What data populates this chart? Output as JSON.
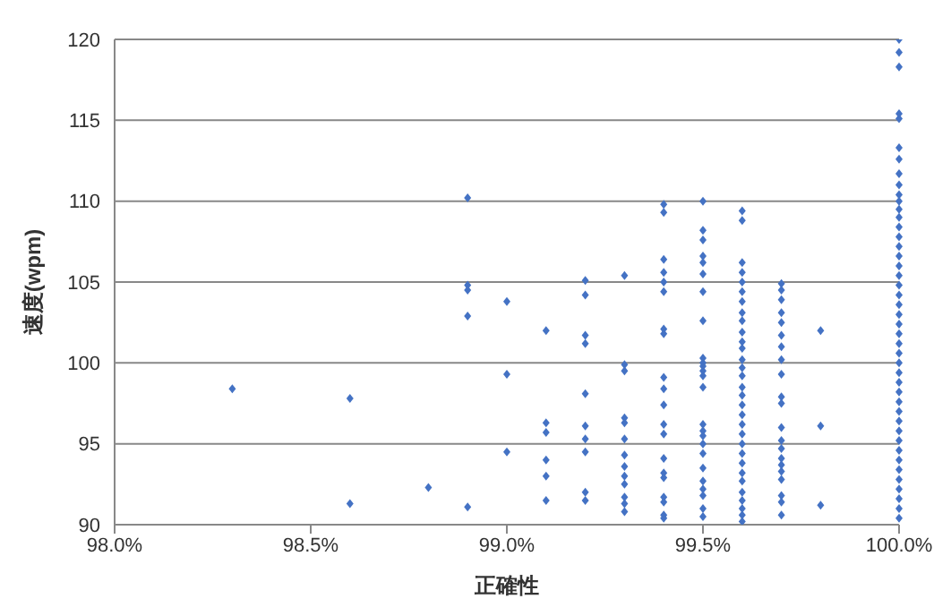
{
  "chart_data": {
    "type": "scatter",
    "xlabel": "正確性",
    "ylabel": "速度(wpm)",
    "xlim": [
      98.0,
      100.0
    ],
    "xticks": [
      {
        "value": 98.0,
        "label": "98.0%"
      },
      {
        "value": 98.5,
        "label": "98.5%"
      },
      {
        "value": 99.0,
        "label": "99.0%"
      },
      {
        "value": 99.5,
        "label": "99.5%"
      },
      {
        "value": 100.0,
        "label": "100.0%"
      }
    ],
    "ylim": [
      90,
      120
    ],
    "yticks": [
      90,
      95,
      100,
      105,
      110,
      115,
      120
    ],
    "grid": "y",
    "marker": "diamond",
    "series": [
      {
        "color": "#4472c4",
        "x": [
          98.3,
          98.6,
          98.6,
          98.8,
          98.9,
          98.9,
          98.9,
          98.9,
          98.9,
          99.0,
          99.0,
          99.0,
          99.1,
          99.1,
          99.1,
          99.1,
          99.1,
          99.1,
          99.2,
          99.2,
          99.2,
          99.2,
          99.2,
          99.2,
          99.2,
          99.2,
          99.2,
          99.2,
          99.3,
          99.3,
          99.3,
          99.3,
          99.3,
          99.3,
          99.3,
          99.3,
          99.3,
          99.3,
          99.3,
          99.3,
          99.3,
          99.4,
          99.4,
          99.4,
          99.4,
          99.4,
          99.4,
          99.4,
          99.4,
          99.4,
          99.4,
          99.4,
          99.4,
          99.4,
          99.4,
          99.4,
          99.4,
          99.4,
          99.4,
          99.4,
          99.4,
          99.5,
          99.5,
          99.5,
          99.5,
          99.5,
          99.5,
          99.5,
          99.5,
          99.5,
          99.5,
          99.5,
          99.5,
          99.5,
          99.5,
          99.5,
          99.5,
          99.5,
          99.5,
          99.5,
          99.5,
          99.5,
          99.5,
          99.5,
          99.5,
          99.5,
          99.6,
          99.6,
          99.6,
          99.6,
          99.6,
          99.6,
          99.6,
          99.6,
          99.6,
          99.6,
          99.6,
          99.6,
          99.6,
          99.6,
          99.6,
          99.6,
          99.6,
          99.6,
          99.6,
          99.6,
          99.6,
          99.6,
          99.6,
          99.6,
          99.6,
          99.6,
          99.6,
          99.6,
          99.6,
          99.6,
          99.6,
          99.7,
          99.7,
          99.7,
          99.7,
          99.7,
          99.7,
          99.7,
          99.7,
          99.7,
          99.7,
          99.7,
          99.7,
          99.7,
          99.7,
          99.7,
          99.7,
          99.7,
          99.7,
          99.7,
          99.7,
          99.7,
          99.8,
          99.8,
          99.8,
          100.0,
          100.0,
          100.0,
          100.0,
          100.0,
          100.0,
          100.0,
          100.0,
          100.0,
          100.0,
          100.0,
          100.0,
          100.0,
          100.0,
          100.0,
          100.0,
          100.0,
          100.0,
          100.0,
          100.0,
          100.0,
          100.0,
          100.0,
          100.0,
          100.0,
          100.0,
          100.0,
          100.0,
          100.0,
          100.0,
          100.0,
          100.0,
          100.0,
          100.0,
          100.0,
          100.0,
          100.0,
          100.0,
          100.0,
          100.0,
          100.0,
          100.0,
          100.0,
          100.0
        ],
        "values": [
          98.4,
          97.8,
          91.3,
          92.3,
          110.2,
          104.8,
          104.5,
          102.9,
          91.1,
          103.8,
          99.3,
          94.5,
          102.0,
          96.3,
          95.7,
          94.0,
          93.0,
          91.5,
          105.1,
          104.2,
          101.7,
          101.2,
          98.1,
          96.1,
          95.3,
          94.5,
          92.0,
          91.5,
          105.4,
          99.9,
          99.5,
          96.6,
          96.3,
          95.3,
          94.3,
          93.6,
          93.0,
          92.5,
          91.7,
          91.3,
          90.8,
          109.8,
          109.3,
          106.4,
          105.6,
          105.0,
          104.4,
          102.1,
          101.8,
          99.1,
          98.4,
          97.4,
          96.2,
          95.6,
          94.1,
          93.2,
          92.9,
          91.7,
          91.4,
          90.6,
          90.4,
          110.0,
          108.2,
          107.6,
          106.6,
          106.2,
          105.5,
          104.4,
          102.6,
          100.3,
          100.0,
          99.8,
          99.5,
          99.2,
          98.5,
          96.2,
          95.8,
          95.5,
          95.0,
          94.4,
          93.5,
          92.7,
          92.2,
          91.8,
          91.0,
          90.5,
          109.4,
          108.8,
          106.2,
          105.6,
          105.0,
          104.4,
          103.8,
          103.1,
          102.6,
          101.9,
          101.3,
          100.9,
          100.2,
          99.7,
          99.2,
          98.5,
          98.0,
          97.4,
          96.8,
          96.2,
          95.6,
          95.0,
          94.4,
          93.8,
          93.2,
          92.7,
          92.0,
          91.5,
          91.0,
          90.6,
          90.2,
          104.9,
          104.5,
          103.9,
          103.1,
          102.5,
          101.7,
          101.0,
          100.2,
          99.3,
          97.9,
          97.5,
          96.0,
          95.2,
          94.7,
          94.1,
          93.7,
          93.3,
          92.8,
          91.8,
          91.4,
          90.6,
          102.0,
          96.1,
          91.2,
          120.0,
          119.2,
          118.3,
          115.4,
          115.1,
          113.3,
          112.6,
          111.7,
          111.0,
          110.4,
          110.0,
          109.5,
          109.0,
          108.4,
          107.8,
          107.2,
          106.6,
          106.0,
          105.4,
          104.8,
          104.2,
          103.6,
          103.0,
          102.4,
          101.8,
          101.2,
          100.6,
          100.0,
          99.4,
          98.8,
          98.2,
          97.6,
          97.0,
          96.4,
          95.8,
          95.2,
          94.6,
          94.0,
          93.4,
          92.8,
          92.2,
          91.6,
          91.0,
          90.4
        ]
      }
    ]
  }
}
